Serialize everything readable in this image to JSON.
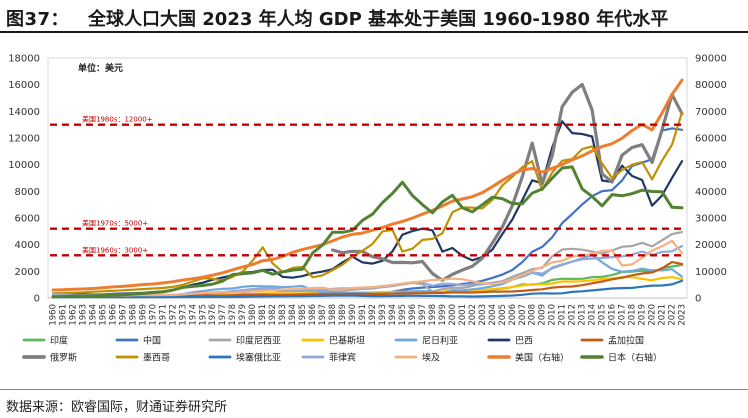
{
  "figure": {
    "number": "图37：",
    "title": "全球人口大国 2023 年人均 GDP 基本处于美国 1960-1980 年代水平"
  },
  "source": "数据来源：欧睿国际，财通证券研究所",
  "chart_data": {
    "type": "line",
    "unit_label": "单位：美元",
    "x": [
      1960,
      1961,
      1962,
      1963,
      1964,
      1965,
      1966,
      1967,
      1968,
      1969,
      1970,
      1971,
      1972,
      1973,
      1974,
      1975,
      1976,
      1977,
      1978,
      1979,
      1980,
      1981,
      1982,
      1983,
      1984,
      1985,
      1986,
      1987,
      1988,
      1989,
      1990,
      1991,
      1992,
      1993,
      1994,
      1995,
      1996,
      1997,
      1998,
      1999,
      2000,
      2001,
      2002,
      2003,
      2004,
      2005,
      2006,
      2007,
      2008,
      2009,
      2010,
      2011,
      2012,
      2013,
      2014,
      2015,
      2016,
      2017,
      2018,
      2019,
      2020,
      2021,
      2022,
      2023
    ],
    "y_left": {
      "min": 0,
      "max": 18000,
      "ticks": [
        0,
        2000,
        4000,
        6000,
        8000,
        10000,
        12000,
        14000,
        16000,
        18000
      ]
    },
    "y_right": {
      "min": 0,
      "max": 90000,
      "ticks": [
        0,
        10000,
        20000,
        30000,
        40000,
        50000,
        60000,
        70000,
        80000,
        90000
      ]
    },
    "reference_lines": [
      {
        "label": "美国1980s：12000+",
        "value": 13000
      },
      {
        "label": "美国1970s：5000+",
        "value": 5200
      },
      {
        "label": "美国1960s：3000+",
        "value": 3200
      }
    ],
    "series": [
      {
        "name": "印度",
        "color": "#5cb85c",
        "axis": "left",
        "width": 2.2,
        "values": [
          82,
          85,
          90,
          100,
          115,
          118,
          91,
          98,
          99,
          107,
          112,
          119,
          123,
          143,
          163,
          158,
          161,
          186,
          205,
          224,
          267,
          271,
          274,
          291,
          277,
          296,
          310,
          340,
          354,
          347,
          367,
          303,
          317,
          302,
          346,
          374,
          400,
          415,
          413,
          442,
          443,
          452,
          471,
          546,
          627,
          715,
          807,
          1028,
          999,
          1102,
          1358,
          1450,
          1434,
          1438,
          1560,
          1590,
          1714,
          1958,
          1974,
          2050,
          1913,
          2238,
          2366,
          2485
        ]
      },
      {
        "name": "中国",
        "color": "#4472c4",
        "axis": "left",
        "width": 2.2,
        "values": [
          90,
          76,
          70,
          74,
          85,
          98,
          104,
          97,
          91,
          100,
          113,
          119,
          132,
          157,
          160,
          178,
          165,
          185,
          156,
          184,
          195,
          197,
          203,
          225,
          251,
          294,
          282,
          252,
          284,
          310,
          318,
          333,
          366,
          377,
          473,
          610,
          709,
          781,
          828,
          873,
          959,
          1053,
          1149,
          1289,
          1509,
          1753,
          2099,
          2694,
          3468,
          3832,
          4550,
          5614,
          6301,
          7020,
          7636,
          8016,
          8094,
          8817,
          9905,
          10144,
          10409,
          12556,
          12720,
          12614
        ]
      },
      {
        "name": "印度尼西亚",
        "color": "#a6a6a6",
        "axis": "left",
        "width": 2.2,
        "values": [
          60,
          62,
          65,
          70,
          72,
          75,
          60,
          55,
          60,
          70,
          80,
          85,
          95,
          125,
          180,
          210,
          250,
          300,
          350,
          380,
          500,
          560,
          580,
          520,
          530,
          530,
          490,
          470,
          500,
          560,
          620,
          680,
          710,
          820,
          900,
          1020,
          1130,
          1050,
          470,
          670,
          780,
          760,
          900,
          1070,
          1150,
          1260,
          1590,
          1860,
          2170,
          2260,
          3120,
          3640,
          3690,
          3620,
          3490,
          3330,
          3560,
          3840,
          3900,
          4140,
          3870,
          4330,
          4790,
          4940
        ]
      },
      {
        "name": "巴基斯坦",
        "color": "#ffc000",
        "axis": "left",
        "width": 2.2,
        "values": [
          80,
          85,
          90,
          95,
          100,
          105,
          115,
          125,
          135,
          145,
          170,
          160,
          130,
          110,
          140,
          170,
          190,
          210,
          240,
          270,
          300,
          340,
          360,
          340,
          350,
          350,
          350,
          360,
          380,
          390,
          400,
          410,
          430,
          440,
          450,
          470,
          480,
          470,
          460,
          450,
          600,
          560,
          540,
          590,
          660,
          740,
          820,
          940,
          1040,
          1020,
          1090,
          1240,
          1240,
          1260,
          1320,
          1430,
          1460,
          1560,
          1570,
          1430,
          1330,
          1500,
          1570,
          1410
        ]
      },
      {
        "name": "尼日利亚",
        "color": "#6fa8dc",
        "axis": "left",
        "width": 2.2,
        "values": [
          95,
          100,
          105,
          110,
          120,
          125,
          130,
          120,
          110,
          130,
          220,
          190,
          230,
          290,
          430,
          520,
          620,
          680,
          710,
          840,
          900,
          880,
          860,
          820,
          850,
          900,
          590,
          420,
          420,
          380,
          380,
          380,
          340,
          330,
          350,
          450,
          500,
          520,
          500,
          350,
          560,
          570,
          650,
          740,
          880,
          1050,
          1380,
          1600,
          1900,
          1680,
          2280,
          2520,
          2740,
          2980,
          3220,
          2680,
          2180,
          1970,
          2030,
          2200,
          2070,
          2070,
          2160,
          1600
        ]
      },
      {
        "name": "巴西",
        "color": "#203864",
        "axis": "left",
        "width": 2.2,
        "values": [
          210,
          215,
          250,
          280,
          260,
          260,
          310,
          330,
          350,
          380,
          440,
          500,
          590,
          800,
          1000,
          1150,
          1370,
          1540,
          1710,
          1900,
          1950,
          2100,
          2120,
          1580,
          1520,
          1640,
          1860,
          1980,
          2160,
          2680,
          3100,
          2670,
          2580,
          2790,
          3500,
          4750,
          5020,
          5200,
          5080,
          3480,
          3750,
          3160,
          2830,
          3070,
          3630,
          4790,
          5890,
          7350,
          8830,
          8600,
          11290,
          13250,
          12370,
          12300,
          12110,
          8810,
          8710,
          9930,
          9150,
          8850,
          6920,
          7690,
          9010,
          10260
        ]
      },
      {
        "name": "孟加拉国",
        "color": "#c55a11",
        "axis": "left",
        "width": 2.2,
        "values": [
          88,
          90,
          92,
          95,
          96,
          98,
          100,
          105,
          110,
          115,
          120,
          110,
          100,
          130,
          200,
          250,
          170,
          180,
          200,
          230,
          250,
          260,
          240,
          230,
          250,
          270,
          270,
          290,
          300,
          300,
          310,
          300,
          300,
          310,
          320,
          330,
          350,
          360,
          380,
          380,
          410,
          410,
          410,
          440,
          470,
          480,
          490,
          530,
          600,
          650,
          780,
          840,
          860,
          960,
          1100,
          1240,
          1400,
          1520,
          1700,
          1840,
          1920,
          2230,
          2690,
          2550
        ]
      },
      {
        "name": "俄罗斯",
        "color": "#7f7f7f",
        "axis": "left",
        "width": 3.2,
        "values": [
          null,
          null,
          null,
          null,
          null,
          null,
          null,
          null,
          null,
          null,
          null,
          null,
          null,
          null,
          null,
          null,
          null,
          null,
          null,
          null,
          null,
          null,
          null,
          null,
          null,
          null,
          null,
          null,
          3600,
          3400,
          3500,
          3490,
          3100,
          2930,
          2660,
          2670,
          2640,
          2740,
          1840,
          1330,
          1770,
          2100,
          2380,
          2980,
          4110,
          5320,
          6920,
          9100,
          11620,
          8560,
          10670,
          14350,
          15430,
          16010,
          14100,
          9310,
          8700,
          10720,
          11290,
          11500,
          10160,
          12590,
          15270,
          13820
        ]
      },
      {
        "name": "墨西哥",
        "color": "#bf9000",
        "axis": "left",
        "width": 2.2,
        "values": [
          350,
          370,
          390,
          420,
          470,
          500,
          540,
          580,
          620,
          670,
          710,
          750,
          830,
          990,
          1240,
          1480,
          1450,
          1310,
          1590,
          1980,
          2810,
          3800,
          2600,
          1940,
          2250,
          2330,
          1550,
          1700,
          2090,
          2500,
          3100,
          3540,
          4050,
          5000,
          5100,
          3490,
          3700,
          4360,
          4430,
          4860,
          6430,
          6790,
          6780,
          6720,
          7360,
          8440,
          9090,
          9810,
          10260,
          8090,
          9420,
          10300,
          10420,
          11170,
          11370,
          10090,
          9000,
          9600,
          10000,
          10200,
          8900,
          10300,
          11500,
          13930
        ]
      },
      {
        "name": "埃塞俄比亚",
        "color": "#2e75b6",
        "axis": "left",
        "width": 2.2,
        "values": [
          55,
          56,
          57,
          58,
          59,
          60,
          62,
          63,
          64,
          65,
          67,
          68,
          70,
          72,
          75,
          78,
          80,
          82,
          85,
          90,
          110,
          120,
          125,
          130,
          135,
          140,
          150,
          160,
          170,
          180,
          190,
          160,
          140,
          140,
          150,
          160,
          170,
          160,
          160,
          150,
          130,
          125,
          115,
          120,
          140,
          160,
          190,
          240,
          320,
          350,
          340,
          350,
          460,
          500,
          570,
          640,
          710,
          740,
          760,
          850,
          930,
          940,
          1020,
          1290
        ]
      },
      {
        "name": "菲律宾",
        "color": "#8ea9db",
        "axis": "left",
        "width": 2.2,
        "values": [
          260,
          270,
          200,
          220,
          230,
          240,
          260,
          270,
          280,
          300,
          200,
          210,
          220,
          270,
          340,
          360,
          400,
          440,
          510,
          590,
          670,
          720,
          740,
          640,
          600,
          580,
          560,
          600,
          680,
          720,
          720,
          730,
          820,
          830,
          950,
          1080,
          1180,
          1150,
          920,
          1070,
          1050,
          970,
          1030,
          1020,
          1110,
          1210,
          1390,
          1690,
          1910,
          1830,
          2220,
          2480,
          2720,
          2900,
          2960,
          3000,
          3070,
          3120,
          3250,
          3490,
          3230,
          3460,
          3500,
          3900
        ]
      },
      {
        "name": "埃及",
        "color": "#f4b183",
        "axis": "left",
        "width": 2.2,
        "values": [
          150,
          155,
          160,
          165,
          170,
          175,
          180,
          190,
          200,
          210,
          220,
          230,
          250,
          270,
          320,
          370,
          420,
          440,
          380,
          470,
          500,
          540,
          580,
          620,
          660,
          700,
          740,
          770,
          620,
          650,
          750,
          780,
          820,
          890,
          980,
          1070,
          1170,
          1250,
          1350,
          1390,
          1450,
          1410,
          1250,
          1120,
          1050,
          1170,
          1400,
          1690,
          2050,
          2320,
          2670,
          2780,
          3130,
          3170,
          3330,
          3540,
          3560,
          2440,
          2520,
          3020,
          3560,
          3880,
          4290,
          3360
        ]
      },
      {
        "name": "美国（右轴）",
        "color": "#ed7d31",
        "axis": "right",
        "width": 3.0,
        "values": [
          3007,
          3067,
          3244,
          3375,
          3574,
          3828,
          4146,
          4336,
          4696,
          5032,
          5234,
          5609,
          6094,
          6726,
          7226,
          7801,
          8592,
          9453,
          10565,
          11674,
          12575,
          13976,
          14434,
          15544,
          17121,
          18237,
          19071,
          20039,
          21417,
          22857,
          23889,
          24342,
          25419,
          26387,
          27695,
          28691,
          29968,
          31459,
          32854,
          34515,
          36330,
          37134,
          37998,
          39490,
          41725,
          44123,
          46302,
          48050,
          48570,
          47195,
          48651,
          50066,
          51784,
          53291,
          55124,
          56763,
          57867,
          59915,
          62805,
          65095,
          63028,
          69288,
          76330,
          81700
        ]
      },
      {
        "name": "日本（右轴）",
        "color": "#548235",
        "axis": "right",
        "width": 3.0,
        "values": [
          480,
          560,
          630,
          720,
          840,
          920,
          1060,
          1230,
          1450,
          1670,
          2040,
          2270,
          2950,
          3990,
          4350,
          4670,
          5200,
          6330,
          8820,
          9100,
          9460,
          10360,
          8930,
          9800,
          10450,
          10850,
          16880,
          19860,
          24680,
          24620,
          25370,
          29150,
          31420,
          35780,
          39230,
          43440,
          38440,
          35020,
          31900,
          36030,
          38530,
          33850,
          32290,
          35000,
          37810,
          37220,
          35430,
          35280,
          39340,
          40860,
          44970,
          48760,
          49150,
          40900,
          38110,
          34520,
          38790,
          38330,
          39160,
          40420,
          39920,
          39830,
          34020,
          33830
        ]
      }
    ]
  }
}
